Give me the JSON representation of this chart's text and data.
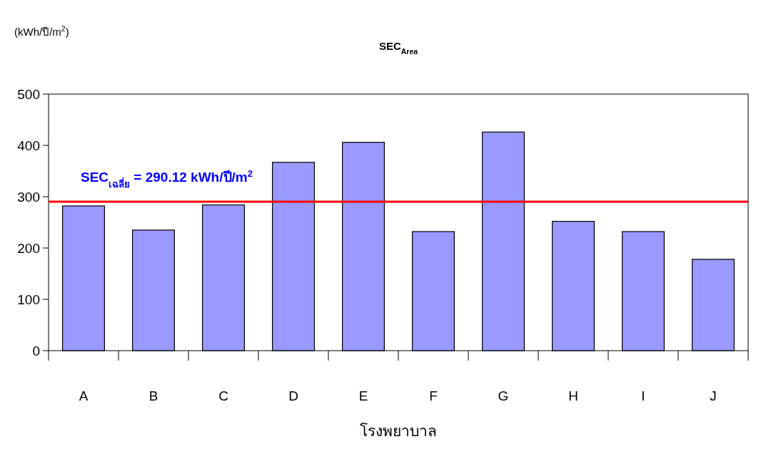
{
  "chart_data": {
    "type": "bar",
    "title": "SEC$_{Area}$",
    "xlabel": "โรงพยาบาล",
    "ylabel": "(kWh/ปี/m$^{2}$)",
    "categories": [
      "A",
      "B",
      "C",
      "D",
      "E",
      "F",
      "G",
      "H",
      "I",
      "J"
    ],
    "values": [
      282,
      235,
      284,
      367,
      406,
      232,
      426,
      252,
      232,
      178
    ],
    "color": "#9999ff",
    "ylim": [
      0,
      500
    ],
    "yticks": [
      0,
      100,
      200,
      300,
      400,
      500
    ],
    "grid": false,
    "ref_lines": [
      {
        "axis": "y",
        "value": 290.12,
        "label": "SEC$_{เฉลี่ย}$ = 290.12 kWh/ปี/m$^{2}$",
        "color": "#ff0000"
      }
    ]
  }
}
